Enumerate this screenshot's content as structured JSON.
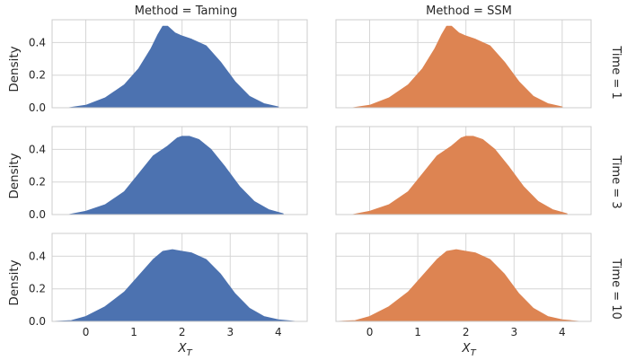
{
  "chart_data": {
    "type": "area",
    "kind": "kde-facet-grid",
    "col_var_label": "Method",
    "row_var_label": "Time",
    "cols": [
      {
        "title": "Method = Taming",
        "method": "Taming",
        "color": "#4c72b0"
      },
      {
        "title": "Method = SSM",
        "method": "SSM",
        "color": "#dd8452"
      }
    ],
    "rows": [
      {
        "title": "Time = 1",
        "time": 1
      },
      {
        "title": "Time = 3",
        "time": 3
      },
      {
        "title": "Time = 10",
        "time": 10
      }
    ],
    "xlabel": "X_T",
    "xlabel_main": "X",
    "xlabel_sub": "T",
    "ylabel": "Density",
    "xlim": [
      -0.7,
      4.6
    ],
    "ylim": [
      0,
      0.54
    ],
    "xticks": [
      0,
      1,
      2,
      3,
      4
    ],
    "yticks": [
      0.0,
      0.2,
      0.4
    ],
    "ytick_labels": [
      "0.0",
      "0.2",
      "0.4"
    ],
    "series": [
      {
        "row": 0,
        "col": 0,
        "name": "Taming, Time = 1",
        "x": [
          -0.35,
          0.0,
          0.4,
          0.8,
          1.1,
          1.35,
          1.5,
          1.6,
          1.7,
          1.85,
          2.0,
          2.2,
          2.5,
          2.8,
          3.1,
          3.4,
          3.7,
          4.0
        ],
        "y": [
          0.0,
          0.015,
          0.06,
          0.14,
          0.24,
          0.36,
          0.45,
          0.5,
          0.5,
          0.46,
          0.44,
          0.42,
          0.38,
          0.28,
          0.16,
          0.07,
          0.025,
          0.005
        ]
      },
      {
        "row": 0,
        "col": 1,
        "name": "SSM, Time = 1",
        "x": [
          -0.35,
          0.0,
          0.4,
          0.8,
          1.1,
          1.35,
          1.5,
          1.6,
          1.7,
          1.85,
          2.0,
          2.2,
          2.5,
          2.8,
          3.1,
          3.4,
          3.7,
          4.0
        ],
        "y": [
          0.0,
          0.015,
          0.06,
          0.14,
          0.24,
          0.36,
          0.45,
          0.5,
          0.5,
          0.46,
          0.44,
          0.42,
          0.38,
          0.28,
          0.16,
          0.07,
          0.025,
          0.005
        ]
      },
      {
        "row": 1,
        "col": 0,
        "name": "Taming, Time = 3",
        "x": [
          -0.35,
          0.0,
          0.4,
          0.8,
          1.1,
          1.4,
          1.7,
          1.9,
          2.0,
          2.15,
          2.35,
          2.6,
          2.9,
          3.2,
          3.5,
          3.8,
          4.1
        ],
        "y": [
          0.0,
          0.02,
          0.06,
          0.14,
          0.25,
          0.36,
          0.42,
          0.47,
          0.48,
          0.48,
          0.46,
          0.4,
          0.29,
          0.17,
          0.08,
          0.03,
          0.005
        ]
      },
      {
        "row": 1,
        "col": 1,
        "name": "SSM, Time = 3",
        "x": [
          -0.35,
          0.0,
          0.4,
          0.8,
          1.1,
          1.4,
          1.7,
          1.9,
          2.0,
          2.15,
          2.35,
          2.6,
          2.9,
          3.2,
          3.5,
          3.8,
          4.1
        ],
        "y": [
          0.0,
          0.02,
          0.06,
          0.14,
          0.25,
          0.36,
          0.42,
          0.47,
          0.48,
          0.48,
          0.46,
          0.4,
          0.29,
          0.17,
          0.08,
          0.03,
          0.005
        ]
      },
      {
        "row": 2,
        "col": 0,
        "name": "Taming, Time = 10",
        "x": [
          -0.65,
          -0.3,
          0.0,
          0.4,
          0.8,
          1.1,
          1.4,
          1.6,
          1.8,
          2.0,
          2.2,
          2.5,
          2.8,
          3.1,
          3.4,
          3.7,
          4.0,
          4.35
        ],
        "y": [
          0.0,
          0.005,
          0.03,
          0.09,
          0.18,
          0.28,
          0.38,
          0.43,
          0.44,
          0.43,
          0.42,
          0.38,
          0.29,
          0.17,
          0.08,
          0.03,
          0.01,
          0.0
        ]
      },
      {
        "row": 2,
        "col": 1,
        "name": "SSM, Time = 10",
        "x": [
          -0.65,
          -0.3,
          0.0,
          0.4,
          0.8,
          1.1,
          1.4,
          1.6,
          1.8,
          2.0,
          2.2,
          2.5,
          2.8,
          3.1,
          3.4,
          3.7,
          4.0,
          4.35
        ],
        "y": [
          0.0,
          0.005,
          0.03,
          0.09,
          0.18,
          0.28,
          0.38,
          0.43,
          0.44,
          0.43,
          0.42,
          0.38,
          0.29,
          0.17,
          0.08,
          0.03,
          0.01,
          0.0
        ]
      }
    ],
    "grid": true,
    "legend": "none"
  }
}
